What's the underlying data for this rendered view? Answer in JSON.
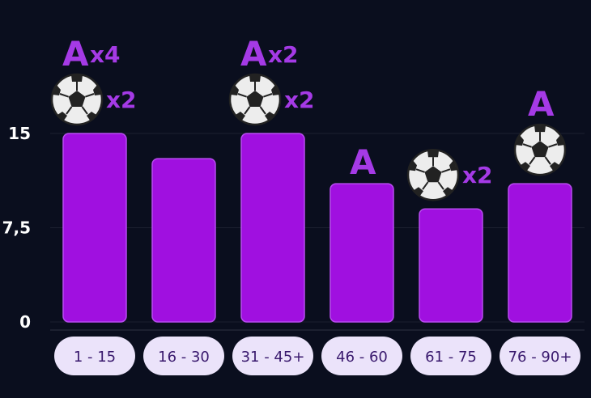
{
  "colors": {
    "background": "#0a0e1e",
    "bar": "#a010e0",
    "bar_border": "#b84cf0",
    "annotation": "#a53ae6",
    "axis_label": "#ffffff",
    "pill_bg": "#ebe3fa",
    "pill_text": "#3a1a6e",
    "grid": "#1c2030"
  },
  "chart_data": {
    "type": "bar",
    "categories": [
      "1 - 15",
      "16 - 30",
      "31 - 45+",
      "46 - 60",
      "61 - 75",
      "76 - 90+"
    ],
    "values": [
      15,
      13,
      15,
      11,
      9,
      11
    ],
    "ylim": [
      0,
      15
    ],
    "yticks": [
      0,
      7.5,
      15
    ],
    "ytick_labels": [
      "0",
      "7,5",
      "15"
    ],
    "grid": true,
    "annotations": [
      {
        "category": "1 - 15",
        "assists": "x4",
        "goals": "x2"
      },
      {
        "category": "16 - 30"
      },
      {
        "category": "31 - 45+",
        "assists": "x2",
        "goals": "x2"
      },
      {
        "category": "46 - 60",
        "assists": ""
      },
      {
        "category": "61 - 75",
        "goals": "x2"
      },
      {
        "category": "76 - 90+",
        "assists": "",
        "goals": ""
      }
    ],
    "assist_letter": "A",
    "goal_icon": "soccer-ball-icon"
  }
}
